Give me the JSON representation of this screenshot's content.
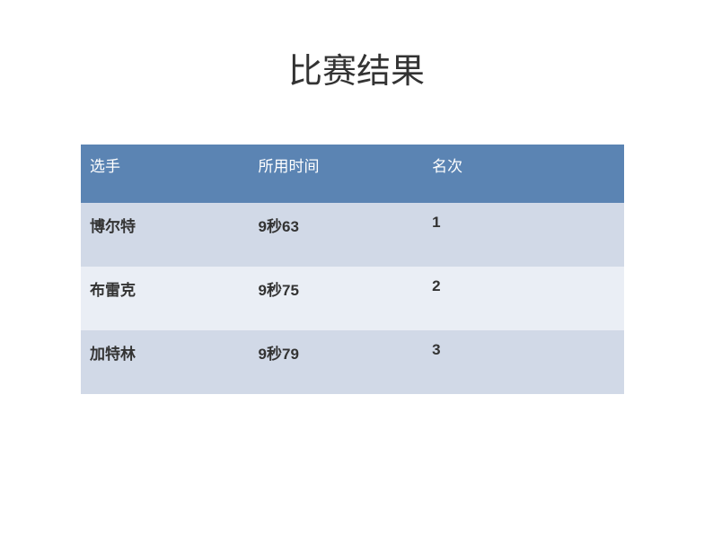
{
  "title": "比赛结果",
  "table": {
    "columns": [
      "选手",
      "所用时间",
      "名次"
    ],
    "rows": [
      [
        "博尔特",
        "9秒63",
        "1"
      ],
      [
        "布雷克",
        "9秒75",
        "2"
      ],
      [
        "加特林",
        "9秒79",
        "3"
      ]
    ],
    "header_bg_color": "#5b84b3",
    "header_text_color": "#ffffff",
    "row_odd_bg_color": "#d1d9e7",
    "row_even_bg_color": "#eaeef5",
    "cell_text_color": "#333333",
    "header_fontsize": 17,
    "cell_fontsize": 17,
    "column_widths_pct": [
      31,
      32,
      37
    ]
  },
  "title_fontsize": 38,
  "background_color": "#ffffff"
}
